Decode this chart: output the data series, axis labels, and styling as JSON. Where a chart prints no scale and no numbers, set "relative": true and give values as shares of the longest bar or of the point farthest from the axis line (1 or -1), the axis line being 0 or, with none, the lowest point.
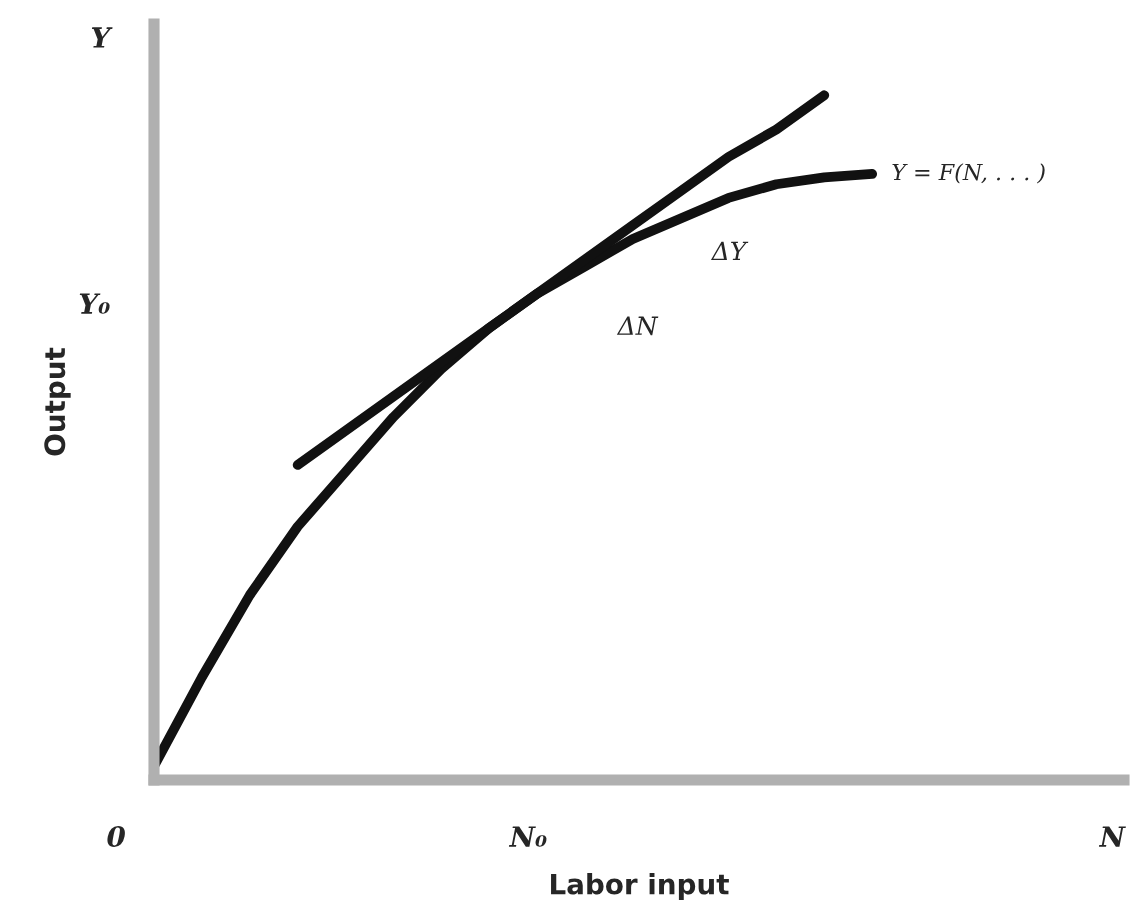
{
  "chart_data": {
    "type": "line",
    "relative": true,
    "xlabel": "Labor input",
    "ylabel": "Output",
    "categories": [
      null,
      null,
      null,
      null,
      null,
      null,
      null,
      null,
      null,
      null,
      null,
      null,
      null,
      null,
      null,
      null,
      null,
      null,
      null,
      null,
      null
    ],
    "series": [
      {
        "name": "Y = F(N, . . . )",
        "color": "#111111",
        "values": [
          0.02,
          0.15,
          0.27,
          0.37,
          0.45,
          0.53,
          0.6,
          0.66,
          0.71,
          0.75,
          0.79,
          0.82,
          0.85,
          0.87,
          0.88,
          0.885,
          null,
          null,
          null,
          null,
          null
        ]
      },
      {
        "color": "#111111",
        "values": [
          null,
          null,
          null,
          0.46,
          0.51,
          0.56,
          0.61,
          0.66,
          0.71,
          0.76,
          0.81,
          0.86,
          0.91,
          0.95,
          1.0,
          null,
          null,
          null,
          null,
          null,
          null
        ]
      }
    ],
    "annotations": [
      "Y",
      "Y₀",
      "ΔY",
      "ΔN",
      "0",
      "N₀",
      "N"
    ],
    "grid": false,
    "legend": false,
    "marker": "none",
    "line_style": "solid"
  }
}
